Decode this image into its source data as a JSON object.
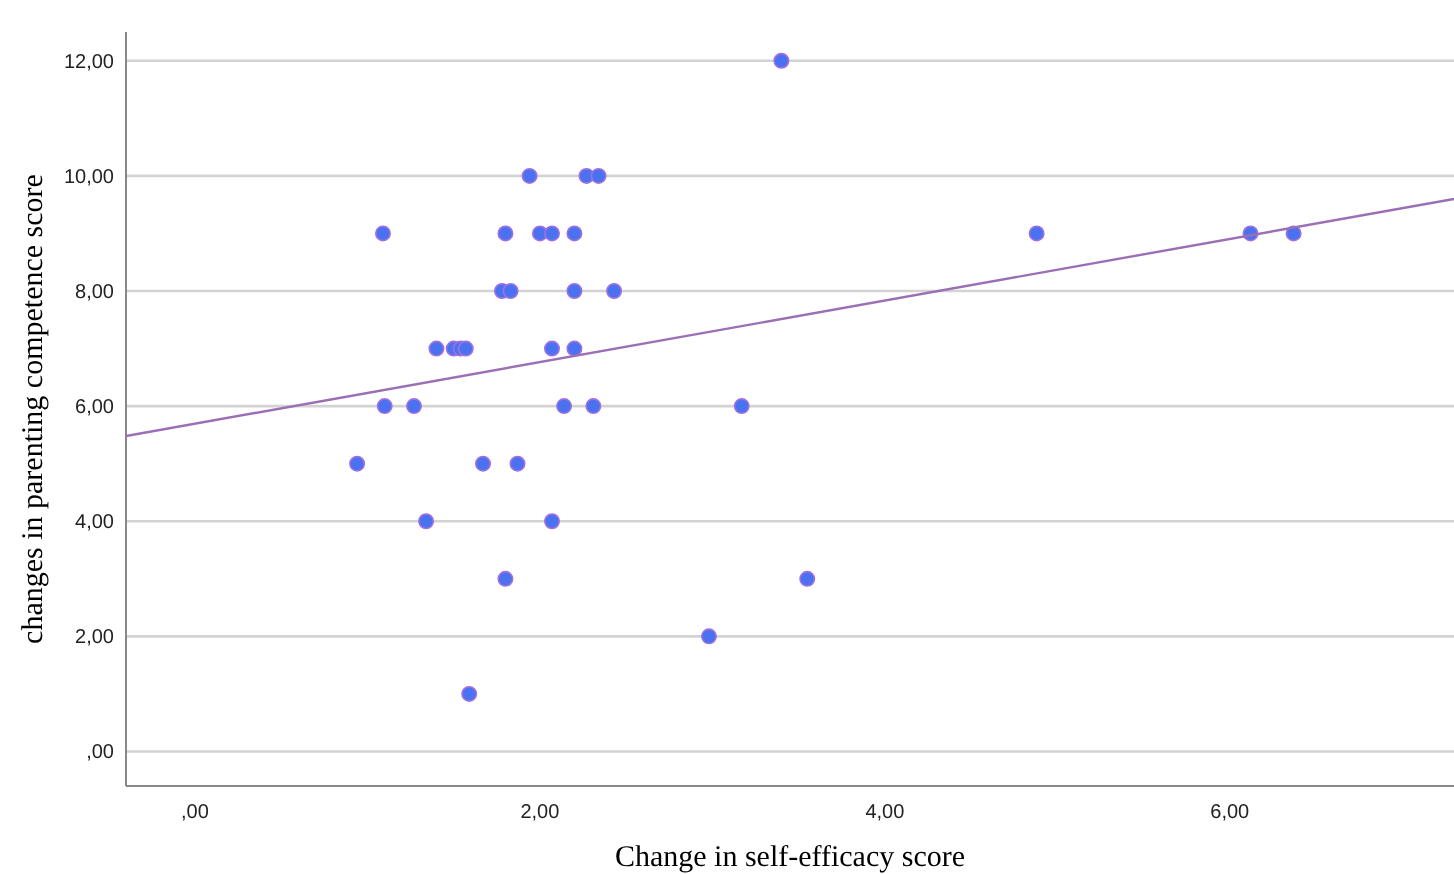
{
  "chart_data": {
    "type": "scatter",
    "xlabel": "Change in self-efficacy score",
    "ylabel": "changes in parenting competence score",
    "xlim": [
      -0.4,
      7.3
    ],
    "ylim": [
      -0.6,
      12.5
    ],
    "xticks": [
      {
        "value": 0,
        "label": ",00"
      },
      {
        "value": 2,
        "label": "2,00"
      },
      {
        "value": 4,
        "label": "4,00"
      },
      {
        "value": 6,
        "label": "6,00"
      }
    ],
    "yticks": [
      {
        "value": 0,
        "label": ",00"
      },
      {
        "value": 2,
        "label": "2,00"
      },
      {
        "value": 4,
        "label": "4,00"
      },
      {
        "value": 6,
        "label": "6,00"
      },
      {
        "value": 8,
        "label": "8,00"
      },
      {
        "value": 10,
        "label": "10,00"
      },
      {
        "value": 12,
        "label": "12,00"
      }
    ],
    "grid": "y",
    "series": [
      {
        "color": "#4a72f0",
        "x": [
          3.4,
          1.94,
          2.27,
          2.34,
          1.09,
          1.8,
          2.0,
          2.07,
          2.2,
          4.88,
          6.12,
          6.37,
          1.78,
          1.83,
          2.2,
          2.43,
          1.4,
          1.5,
          1.54,
          1.57,
          2.07,
          2.2,
          1.1,
          1.27,
          2.14,
          2.31,
          3.17,
          0.94,
          1.67,
          1.87,
          1.34,
          2.07,
          1.8,
          3.55,
          2.98,
          1.59
        ],
        "values": [
          12,
          10,
          10,
          10,
          9,
          9,
          9,
          9,
          9,
          9,
          9,
          9,
          8,
          8,
          8,
          8,
          7,
          7,
          7,
          7,
          7,
          7,
          6,
          6,
          6,
          6,
          6,
          5,
          5,
          5,
          4,
          4,
          3,
          3,
          2,
          1
        ]
      },
      {
        "type": "line",
        "color": "#9b6fb5",
        "x": [
          -0.4,
          7.3
        ],
        "values": [
          5.48,
          9.6
        ]
      }
    ]
  }
}
